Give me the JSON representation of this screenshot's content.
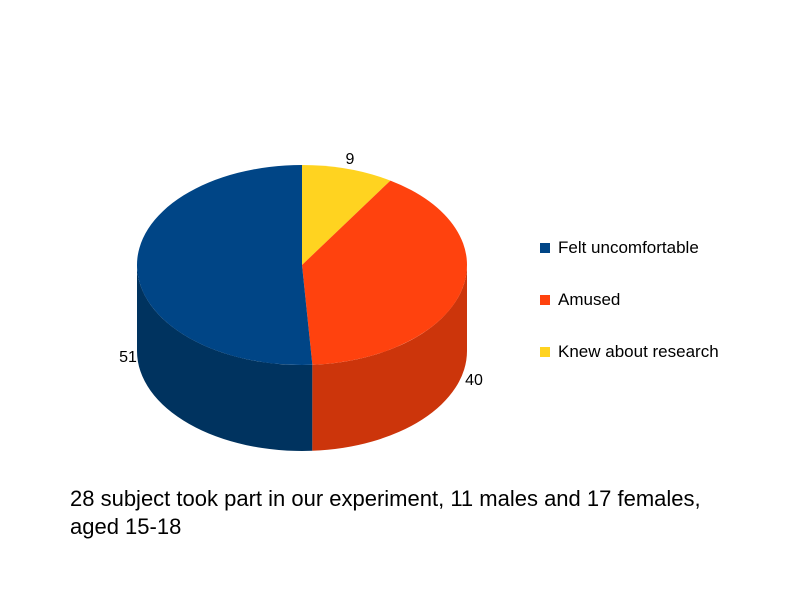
{
  "chart_data": {
    "type": "pie",
    "style": "3d",
    "categories": [
      "Felt uncomfortable",
      "Amused",
      "Knew about research"
    ],
    "values": [
      51,
      40,
      9
    ],
    "data_labels": [
      "51",
      "40",
      "9"
    ],
    "colors": [
      "#004586",
      "#ff420e",
      "#ffd320"
    ],
    "side_colors": [
      "#00335f",
      "#cc350b",
      "#ccaa1a"
    ],
    "legend_position": "right"
  },
  "legend": {
    "items": [
      {
        "label": "Felt uncomfortable",
        "color": "#004586"
      },
      {
        "label": "Amused",
        "color": "#ff420e"
      },
      {
        "label": "Knew about research",
        "color": "#ffd320"
      }
    ]
  },
  "caption": "28 subject took part in our experiment, 11 males and 17 females, aged 15-18"
}
